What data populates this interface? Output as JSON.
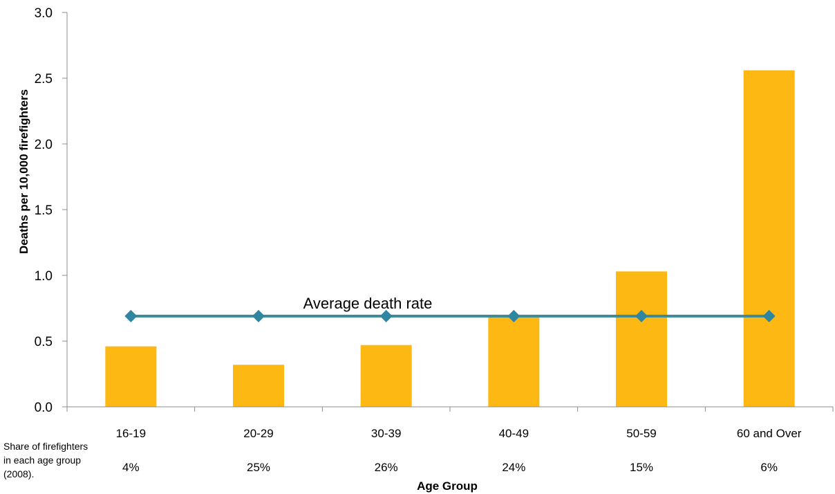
{
  "chart_data": {
    "type": "bar",
    "title": "",
    "xlabel": "Age Group",
    "ylabel": "Deaths per 10,000 firefighters",
    "ylim": [
      0,
      3.0
    ],
    "y_ticks": [
      "0.0",
      "0.5",
      "1.0",
      "1.5",
      "2.0",
      "2.5",
      "3.0"
    ],
    "categories": [
      "16-19",
      "20-29",
      "30-39",
      "40-49",
      "50-59",
      "60 and Over"
    ],
    "series": [
      {
        "values": [
          0.46,
          0.32,
          0.47,
          0.69,
          1.03,
          2.56
        ],
        "color": "#FDB813"
      },
      {
        "type": "line",
        "values": [
          0.69,
          0.69,
          0.69,
          0.69,
          0.69,
          0.69
        ],
        "color": "#3A8A9A",
        "marker": "diamond",
        "marker_color": "#2E86A0"
      }
    ],
    "annotation": "Average death rate",
    "share_note": [
      "Share of firefighters",
      "in each age group",
      " (2008)."
    ],
    "shares": [
      "4%",
      "25%",
      "26%",
      "24%",
      "15%",
      "6%"
    ],
    "grid": false,
    "legend": "none"
  }
}
